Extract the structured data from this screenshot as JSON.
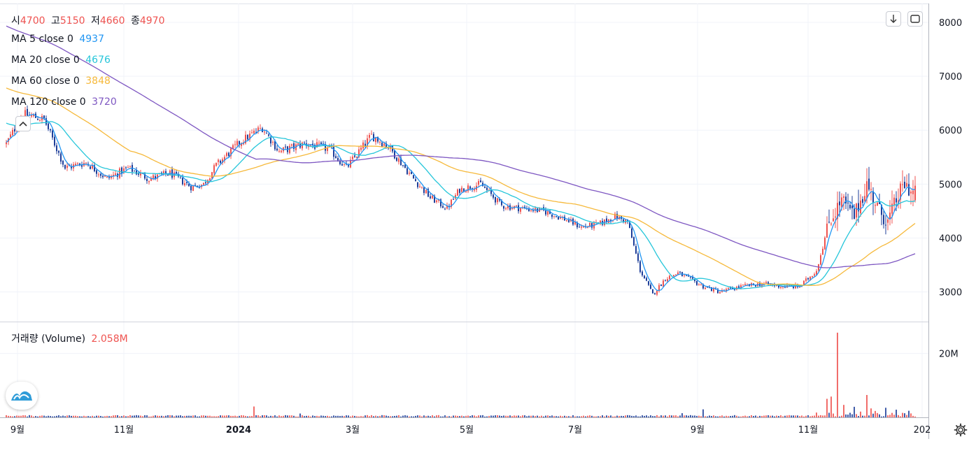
{
  "ohlc_header": {
    "open_label": "시",
    "open": "4700",
    "high_label": "고",
    "high": "5150",
    "low_label": "저",
    "low": "4660",
    "close_label": "종",
    "close": "4970"
  },
  "ma_legend": [
    {
      "label": "MA 5 close 0",
      "value": "4937",
      "color": "#2196f3"
    },
    {
      "label": "MA 20 close 0",
      "value": "4676",
      "color": "#26c6da"
    },
    {
      "label": "MA 60 close 0",
      "value": "3848",
      "color": "#f6b93b"
    },
    {
      "label": "MA 120 close 0",
      "value": "3720",
      "color": "#7e57c2"
    }
  ],
  "volume_legend": {
    "label": "거래량 (Volume)",
    "value": "2.058M"
  },
  "colors": {
    "up": "#ef5350",
    "down": "#1f3f9a",
    "grid": "#f0f3fa",
    "axis_text": "#131722"
  },
  "icons": [
    "download-icon",
    "fullscreen-icon",
    "collapse-chevron-up-icon",
    "tradingview-logo-icon",
    "settings-gear-icon"
  ],
  "chart_data": {
    "type": "candlestick",
    "x_ticks": [
      "9월",
      "11월",
      "2024",
      "3월",
      "5월",
      "7월",
      "9월",
      "11월",
      "202"
    ],
    "y_ticks": [
      "8000",
      "7000",
      "6000",
      "5000",
      "4000",
      "3000"
    ],
    "ylim": [
      2450,
      8350
    ],
    "volume_ticks": [
      "20M"
    ],
    "volume_ylim": [
      0,
      28
    ],
    "grid": true,
    "anchors": [
      [
        0,
        5750
      ],
      [
        8,
        6300
      ],
      [
        18,
        6200
      ],
      [
        28,
        5300
      ],
      [
        38,
        5400
      ],
      [
        48,
        5100
      ],
      [
        58,
        5300
      ],
      [
        68,
        5100
      ],
      [
        78,
        5200
      ],
      [
        88,
        4950
      ],
      [
        94,
        5000
      ],
      [
        100,
        5350
      ],
      [
        112,
        5800
      ],
      [
        122,
        6050
      ],
      [
        130,
        5600
      ],
      [
        142,
        5750
      ],
      [
        154,
        5650
      ],
      [
        162,
        5300
      ],
      [
        174,
        5900
      ],
      [
        182,
        5700
      ],
      [
        194,
        5100
      ],
      [
        202,
        4750
      ],
      [
        210,
        4550
      ],
      [
        216,
        4900
      ],
      [
        226,
        5000
      ],
      [
        236,
        4600
      ],
      [
        246,
        4550
      ],
      [
        256,
        4500
      ],
      [
        266,
        4350
      ],
      [
        274,
        4200
      ],
      [
        282,
        4250
      ],
      [
        290,
        4400
      ],
      [
        296,
        4300
      ],
      [
        302,
        3400
      ],
      [
        308,
        2950
      ],
      [
        314,
        3250
      ],
      [
        320,
        3350
      ],
      [
        332,
        3100
      ],
      [
        340,
        3000
      ],
      [
        350,
        3100
      ],
      [
        360,
        3150
      ],
      [
        370,
        3100
      ],
      [
        378,
        3100
      ],
      [
        386,
        3400
      ],
      [
        392,
        4300
      ],
      [
        398,
        4700
      ],
      [
        404,
        4400
      ],
      [
        410,
        5000
      ],
      [
        416,
        4500
      ],
      [
        420,
        4300
      ],
      [
        424,
        4700
      ],
      [
        428,
        5000
      ],
      [
        433,
        4800
      ]
    ],
    "volume_spikes": [
      {
        "index": 118,
        "value": 3.4
      },
      {
        "index": 140,
        "value": 1.2
      },
      {
        "index": 322,
        "value": 1.3
      },
      {
        "index": 332,
        "value": 2.5
      },
      {
        "index": 386,
        "value": 1.5
      },
      {
        "index": 391,
        "value": 5.8
      },
      {
        "index": 393,
        "value": 6.5
      },
      {
        "index": 396,
        "value": 26.5
      },
      {
        "index": 399,
        "value": 3.9
      },
      {
        "index": 404,
        "value": 3.3
      },
      {
        "index": 407,
        "value": 1.8
      },
      {
        "index": 410,
        "value": 7.0
      },
      {
        "index": 412,
        "value": 2.8
      },
      {
        "index": 414,
        "value": 2.0
      },
      {
        "index": 419,
        "value": 3.0
      },
      {
        "index": 424,
        "value": 2.4
      },
      {
        "index": 430,
        "value": 2.058
      }
    ]
  }
}
